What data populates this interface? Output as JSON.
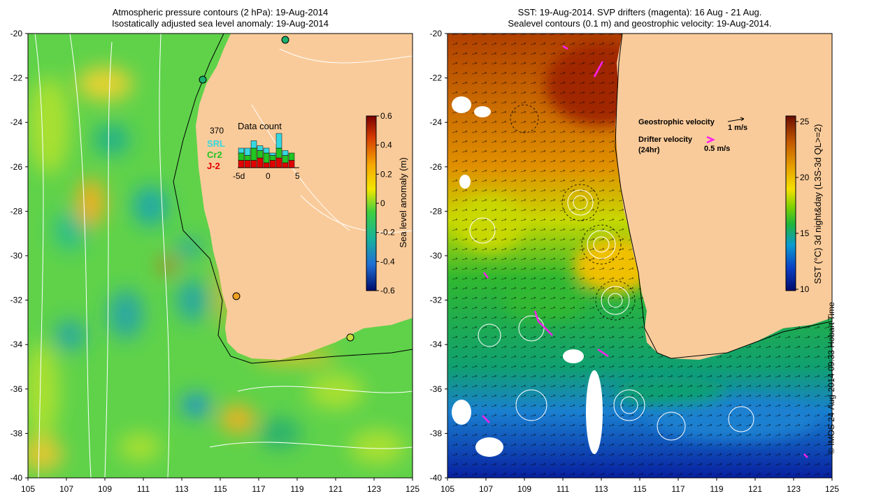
{
  "left_panel": {
    "title_line1": "Atmospheric pressure contours (2 hPa): 19-Aug-2014",
    "title_line2": "Isostatically adjusted sea level anomaly: 19-Aug-2014",
    "colorbar": {
      "label": "Sea level anomaly (m)",
      "ticks": [
        "0.6",
        "0.4",
        "0.2",
        "0",
        "-0.2",
        "-0.4",
        "-0.6"
      ],
      "colors": [
        "#7a0000",
        "#d43a00",
        "#f7a800",
        "#f4e600",
        "#3fcf3f",
        "#17b39a",
        "#1f6ed4",
        "#000b6b"
      ]
    },
    "inset": {
      "count": "370",
      "title": "Data count",
      "legend": [
        {
          "name": "SRL",
          "color": "#35d7e0"
        },
        {
          "name": "Cr2",
          "color": "#22c522"
        },
        {
          "name": "J-2",
          "color": "#e00000"
        }
      ],
      "x_ticks": [
        "-5d",
        "0",
        "5"
      ],
      "bars": [
        {
          "j2": 3,
          "cr2": 3,
          "srl": 2
        },
        {
          "j2": 3,
          "cr2": 2,
          "srl": 3
        },
        {
          "j2": 3,
          "cr2": 5,
          "srl": 3
        },
        {
          "j2": 4,
          "cr2": 3,
          "srl": 2
        },
        {
          "j2": 2,
          "cr2": 4,
          "srl": 2
        },
        {
          "j2": 3,
          "cr2": 2,
          "srl": 1
        },
        {
          "j2": 4,
          "cr2": 4,
          "srl": 6
        },
        {
          "j2": 2,
          "cr2": 3,
          "srl": 2
        },
        {
          "j2": 3,
          "cr2": 3,
          "srl": 0
        }
      ]
    }
  },
  "right_panel": {
    "title_line1": "SST: 19-Aug-2014. SVP drifters (magenta): 16 Aug - 21 Aug.",
    "title_line2": "Sealevel contours (0.1 m) and geostrophic velocity: 19-Aug-2014.",
    "legend": {
      "geo_label": "Geostrophic velocity",
      "geo_scale": "1 m/s",
      "drifter_label": "Drifter velocity",
      "drifter_sub": "(24hr)",
      "drifter_scale": "0.5 m/s"
    },
    "colorbar": {
      "label": "SST (°C) 3d night&day (L3S-3d QL>=2)",
      "ticks": [
        "25",
        "20",
        "15",
        "10"
      ],
      "colors": [
        "#6b0d00",
        "#c45a00",
        "#e8a400",
        "#f5e000",
        "#7fd200",
        "#1fb53a",
        "#0a9ad0",
        "#0a3fc4",
        "#000a6b"
      ]
    }
  },
  "axes": {
    "y_ticks": [
      "-20",
      "-22",
      "-24",
      "-26",
      "-28",
      "-30",
      "-32",
      "-34",
      "-36",
      "-38",
      "-40"
    ],
    "x_ticks": [
      "105",
      "107",
      "109",
      "111",
      "113",
      "115",
      "117",
      "119",
      "121",
      "123",
      "125"
    ],
    "land_color": "#facb9a"
  },
  "credit": "© IMOS 24-Aug-2014 09:33 Hobart Time"
}
